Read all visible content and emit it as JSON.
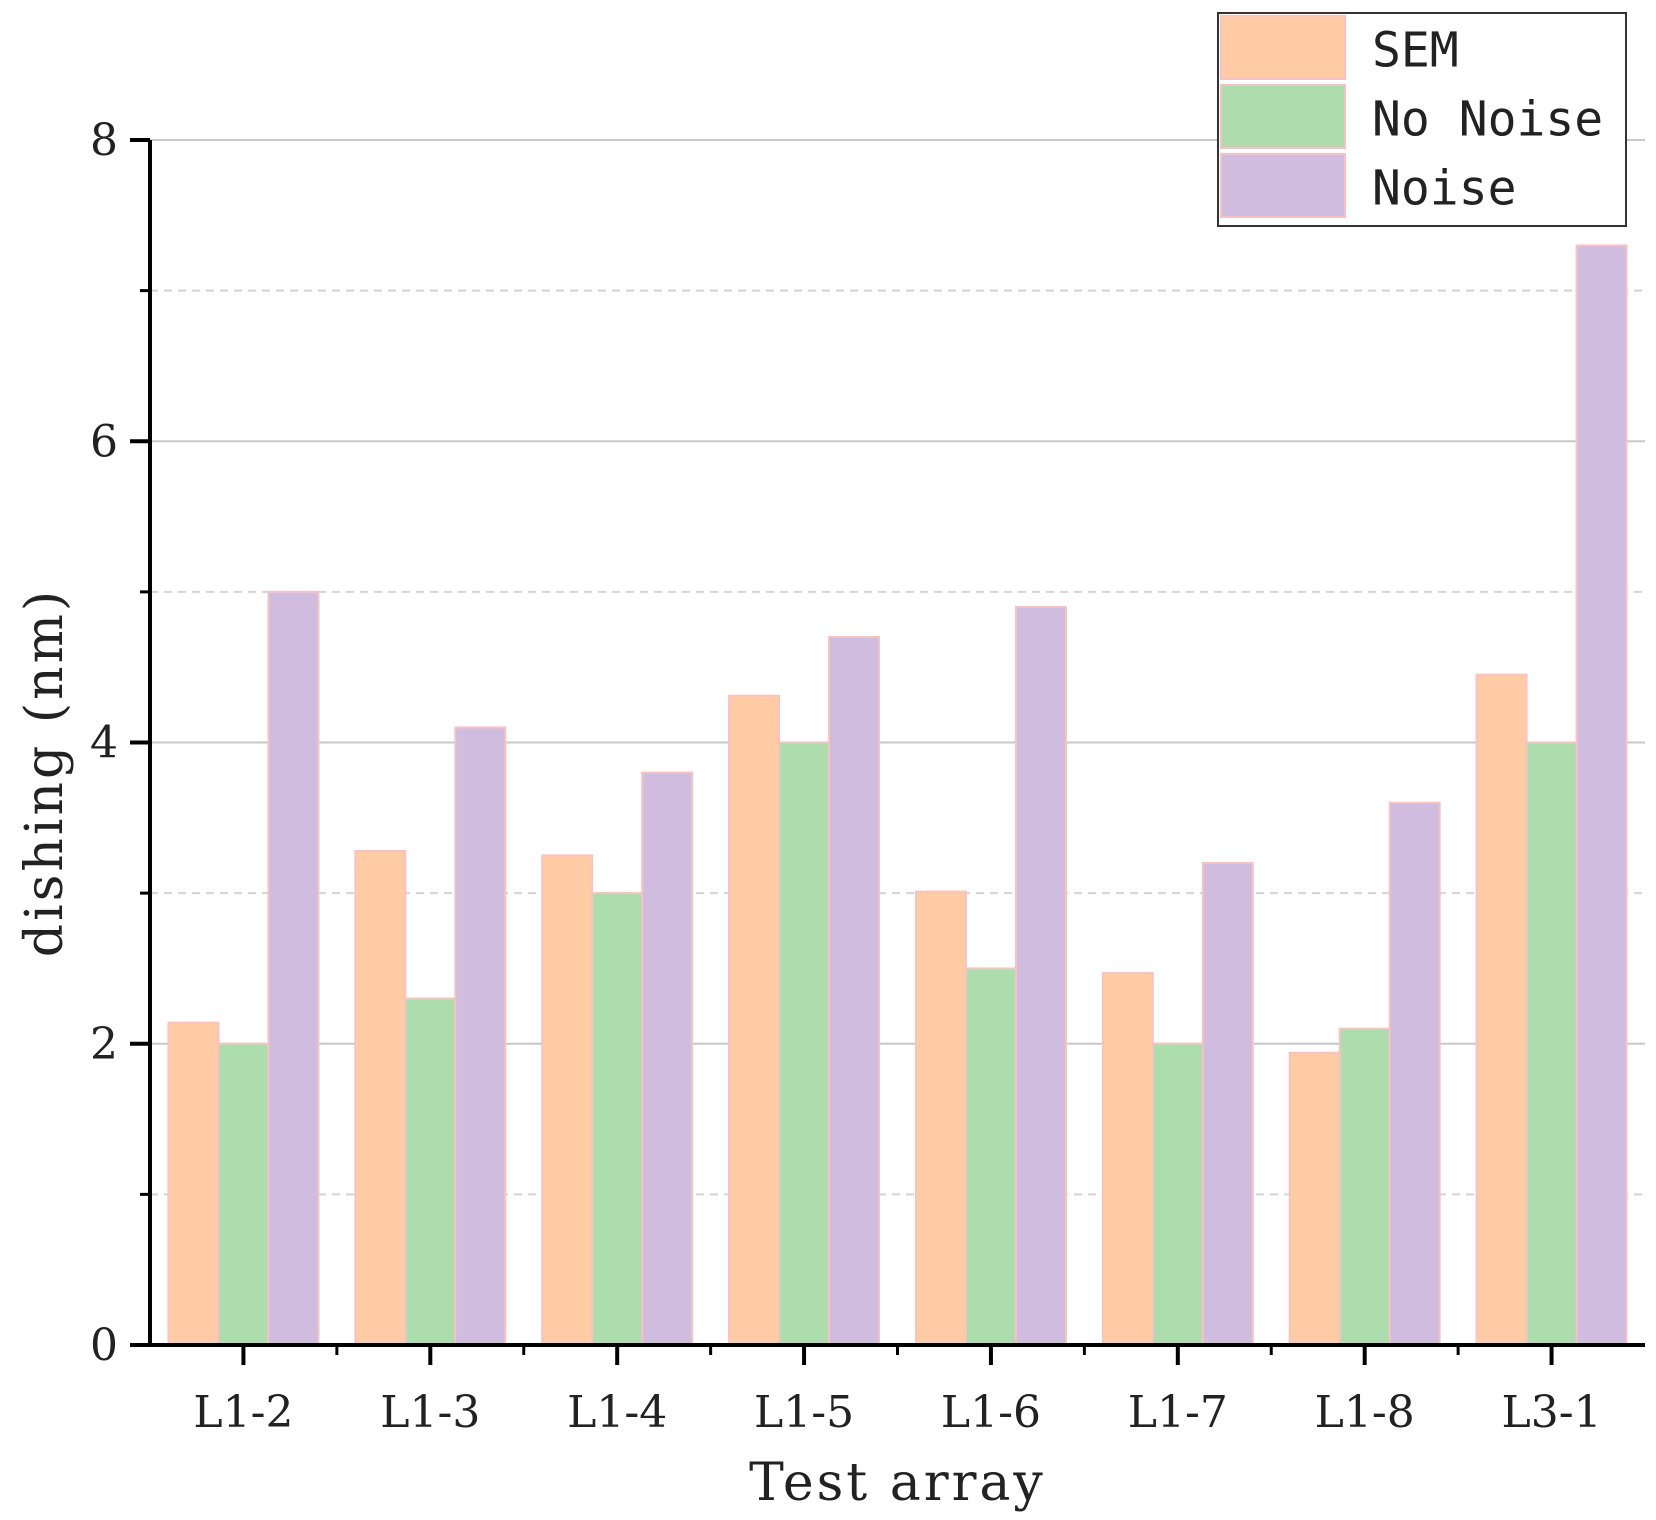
{
  "chart_data": {
    "type": "bar",
    "title": "",
    "xlabel": "Test array",
    "ylabel": "dishing (nm)",
    "categories": [
      "L1-2",
      "L1-3",
      "L1-4",
      "L1-5",
      "L1-6",
      "L1-7",
      "L1-8",
      "L3-1"
    ],
    "ylim": [
      0,
      8
    ],
    "yticks": [
      0,
      2,
      4,
      6,
      8
    ],
    "grid": true,
    "legend_position": "top-right",
    "series": [
      {
        "name": "SEM",
        "color": "#FFCBA4",
        "values": [
          2.14,
          3.28,
          3.25,
          4.31,
          3.01,
          2.47,
          1.94,
          4.45
        ]
      },
      {
        "name": "No Noise",
        "color": "#ADDDAD",
        "values": [
          2.0,
          2.3,
          3.0,
          4.0,
          2.5,
          2.0,
          2.1,
          4.0
        ]
      },
      {
        "name": "Noise",
        "color": "#CFBCDE",
        "values": [
          5.0,
          4.1,
          3.8,
          4.7,
          4.9,
          3.2,
          3.6,
          7.3
        ]
      }
    ]
  }
}
